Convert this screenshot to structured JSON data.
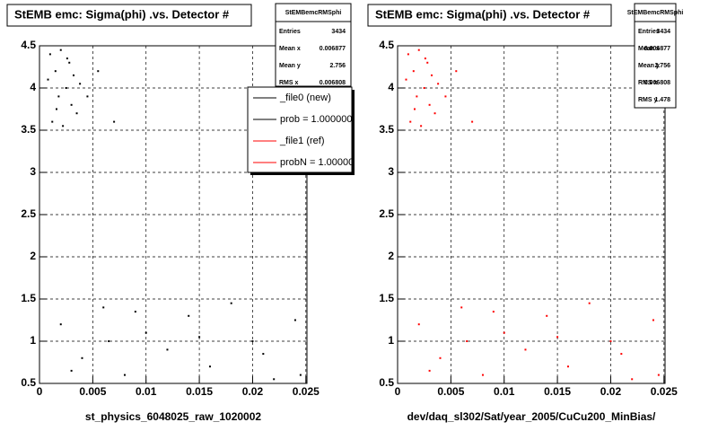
{
  "chart_data": [
    {
      "type": "scatter",
      "title": "StEMB emc: Sigma(phi) .vs. Detector #",
      "xlabel": "st_physics_6048025_raw_1020002",
      "color": "#000000",
      "x": [
        0.001,
        0.0015,
        0.002,
        0.0025,
        0.003,
        0.0012,
        0.0018,
        0.0028,
        0.0035,
        0.0008,
        0.0022,
        0.0032,
        0.0045,
        0.0055,
        0.007,
        0.0016,
        0.0026,
        0.0038,
        0.002,
        0.004,
        0.006,
        0.008,
        0.01,
        0.012,
        0.014,
        0.016,
        0.018,
        0.02,
        0.022,
        0.024,
        0.003,
        0.009,
        0.015,
        0.021,
        0.0245,
        0.0065
      ],
      "y": [
        4.4,
        4.2,
        4.45,
        4.0,
        3.8,
        3.6,
        3.9,
        4.3,
        3.7,
        4.1,
        3.55,
        4.15,
        3.9,
        4.2,
        3.6,
        3.75,
        4.35,
        4.05,
        1.2,
        0.8,
        1.4,
        0.6,
        1.1,
        0.9,
        1.3,
        0.7,
        1.45,
        1.0,
        0.55,
        1.25,
        0.65,
        1.35,
        1.05,
        0.85,
        0.6,
        1.0
      ],
      "xlim": [
        0,
        0.0251
      ],
      "ylim": [
        0.5,
        4.5
      ],
      "xticks": [
        0,
        0.005,
        0.01,
        0.015,
        0.02,
        0.025
      ],
      "yticks": [
        0.5,
        1,
        1.5,
        2,
        2.5,
        3,
        3.5,
        4,
        4.5
      ],
      "grid": true,
      "stats": {
        "title": "StEMBemcRMSphi",
        "rows": [
          {
            "label": "Entries",
            "value": 3434
          },
          {
            "label": "Mean x",
            "value": 0.006877
          },
          {
            "label": "Mean y",
            "value": 2.756
          },
          {
            "label": "RMS x",
            "value": 0.006808
          }
        ]
      },
      "legend": [
        {
          "name": "_file0 (new)",
          "color": "#000000"
        },
        {
          "name": "prob = 1.000000",
          "color": "#000000"
        },
        {
          "name": "_file1 (ref)",
          "color": "#ff0000"
        },
        {
          "name": "probN = 1.00000",
          "color": "#ff0000"
        }
      ]
    },
    {
      "type": "scatter",
      "title": "StEMB emc: Sigma(phi) .vs. Detector #",
      "xlabel": "dev/daq_sl302/Sat/year_2005/CuCu200_MinBias/",
      "color": "#ff0000",
      "x": [
        0.001,
        0.0015,
        0.002,
        0.0025,
        0.003,
        0.0012,
        0.0018,
        0.0028,
        0.0035,
        0.0008,
        0.0022,
        0.0032,
        0.0045,
        0.0055,
        0.007,
        0.0016,
        0.0026,
        0.0038,
        0.002,
        0.004,
        0.006,
        0.008,
        0.01,
        0.012,
        0.014,
        0.016,
        0.018,
        0.02,
        0.022,
        0.024,
        0.003,
        0.009,
        0.015,
        0.021,
        0.0245,
        0.0065
      ],
      "y": [
        4.4,
        4.2,
        4.45,
        4.0,
        3.8,
        3.6,
        3.9,
        4.3,
        3.7,
        4.1,
        3.55,
        4.15,
        3.9,
        4.2,
        3.6,
        3.75,
        4.35,
        4.05,
        1.2,
        0.8,
        1.4,
        0.6,
        1.1,
        0.9,
        1.3,
        0.7,
        1.45,
        1.0,
        0.55,
        1.25,
        0.65,
        1.35,
        1.05,
        0.85,
        0.6,
        1.0
      ],
      "xlim": [
        0,
        0.0251
      ],
      "ylim": [
        0.5,
        4.5
      ],
      "xticks": [
        0,
        0.005,
        0.01,
        0.015,
        0.02,
        0.025
      ],
      "yticks": [
        0.5,
        1,
        1.5,
        2,
        2.5,
        3,
        3.5,
        4,
        4.5
      ],
      "grid": true,
      "stats": {
        "title": "StEMBemcRMSphi",
        "rows": [
          {
            "label": "Entries",
            "value": 3434
          },
          {
            "label": "Mean x",
            "value": 0.006877
          },
          {
            "label": "Mean y",
            "value": 2.756
          },
          {
            "label": "RMS x",
            "value": 0.006808
          },
          {
            "label": "RMS y",
            "value": 1.478
          }
        ]
      }
    }
  ]
}
